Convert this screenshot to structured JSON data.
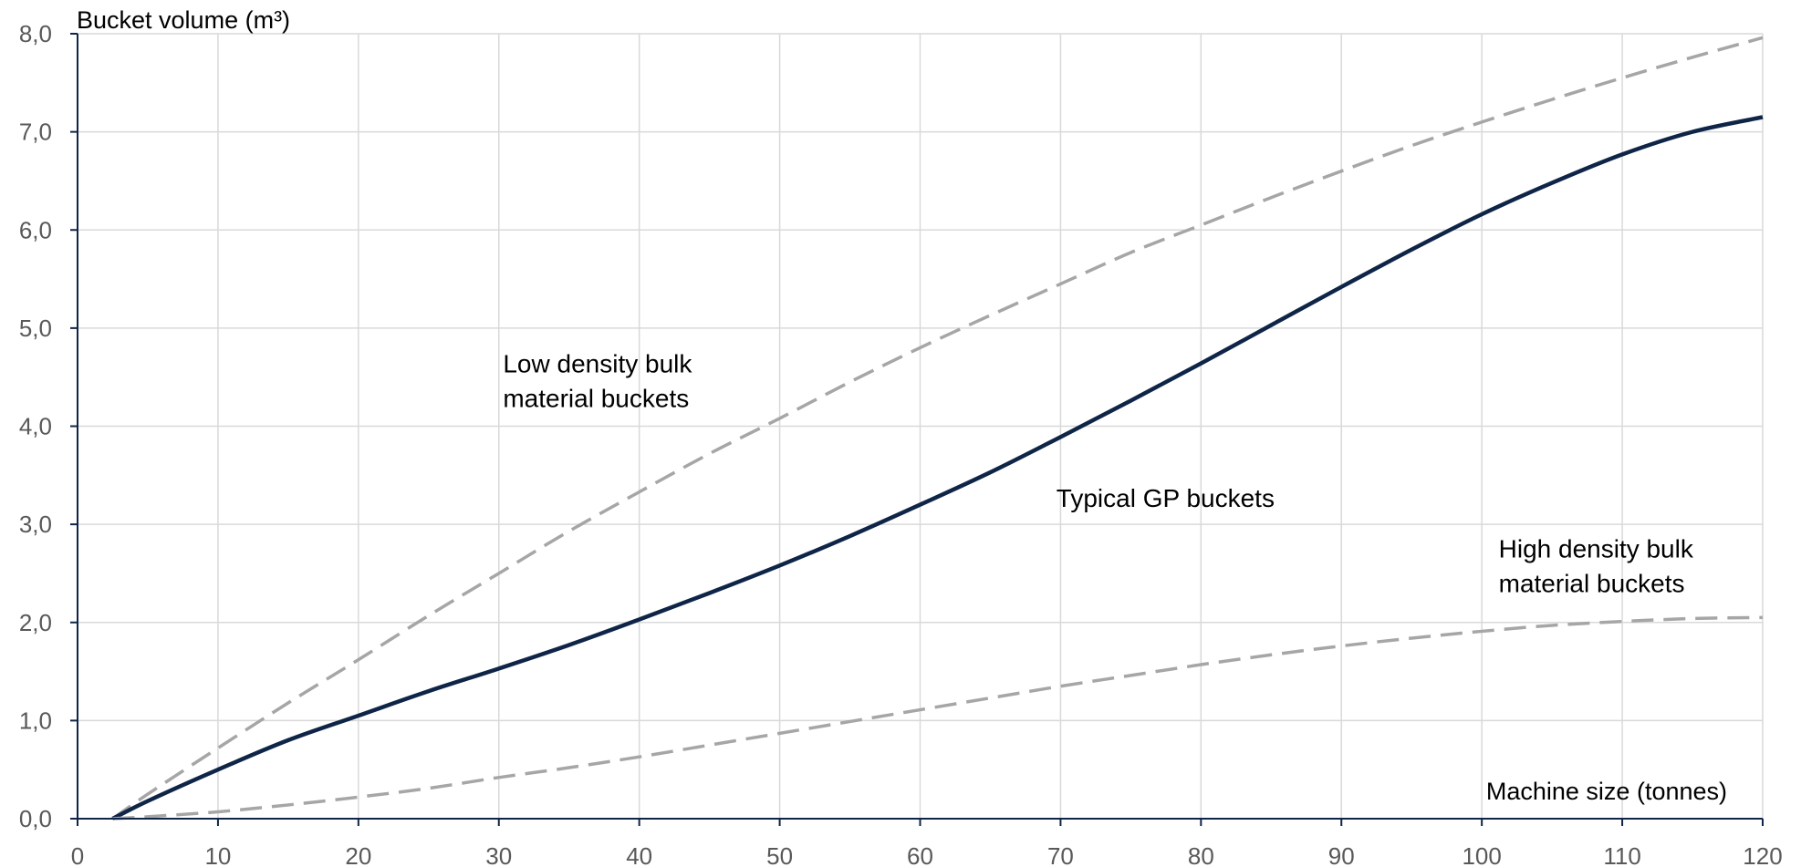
{
  "chart_data": {
    "type": "line",
    "ylabel": "Bucket volume (m³)",
    "xlabel": "Machine size (tonnes)",
    "xlim": [
      0,
      120
    ],
    "ylim": [
      0,
      8
    ],
    "x_ticks": [
      "0",
      "10",
      "20",
      "30",
      "40",
      "50",
      "60",
      "70",
      "80",
      "90",
      "100",
      "110",
      "120"
    ],
    "y_ticks": [
      "0,0",
      "1,0",
      "2,0",
      "3,0",
      "4,0",
      "5,0",
      "6,0",
      "7,0",
      "8,0"
    ],
    "grid": true,
    "series": [
      {
        "style": "dashed",
        "color": "#a6a6a6",
        "x": [
          2.5,
          5,
          10,
          15,
          20,
          25,
          30,
          35,
          40,
          45,
          50,
          55,
          60,
          65,
          70,
          75,
          80,
          85,
          90,
          95,
          100,
          105,
          110,
          115,
          120
        ],
        "y": [
          0,
          0.25,
          0.72,
          1.18,
          1.62,
          2.07,
          2.5,
          2.93,
          3.33,
          3.72,
          4.08,
          4.45,
          4.8,
          5.13,
          5.45,
          5.77,
          6.05,
          6.33,
          6.6,
          6.86,
          7.1,
          7.33,
          7.55,
          7.76,
          7.96
        ]
      },
      {
        "style": "solid",
        "color": "#0f2548",
        "x": [
          2.5,
          5,
          10,
          15,
          20,
          25,
          30,
          35,
          40,
          45,
          50,
          55,
          60,
          65,
          70,
          75,
          80,
          85,
          90,
          95,
          100,
          105,
          110,
          115,
          120
        ],
        "y": [
          0,
          0.18,
          0.5,
          0.8,
          1.05,
          1.3,
          1.53,
          1.77,
          2.03,
          2.3,
          2.58,
          2.88,
          3.2,
          3.53,
          3.89,
          4.26,
          4.64,
          5.03,
          5.42,
          5.8,
          6.16,
          6.48,
          6.77,
          7.0,
          7.15
        ]
      },
      {
        "style": "dashed",
        "color": "#a6a6a6",
        "x": [
          2.5,
          5,
          10,
          15,
          20,
          25,
          30,
          35,
          40,
          45,
          50,
          55,
          60,
          65,
          70,
          75,
          80,
          85,
          90,
          95,
          100,
          105,
          110,
          115,
          120
        ],
        "y": [
          0,
          0.02,
          0.07,
          0.14,
          0.22,
          0.31,
          0.42,
          0.52,
          0.63,
          0.75,
          0.87,
          0.99,
          1.11,
          1.23,
          1.35,
          1.46,
          1.57,
          1.67,
          1.76,
          1.84,
          1.91,
          1.97,
          2.01,
          2.04,
          2.05
        ]
      }
    ],
    "annotations": [
      {
        "lines": [
          "Low density bulk",
          "material buckets"
        ],
        "x": 30.3,
        "y": 4.55
      },
      {
        "lines": [
          "Typical GP buckets"
        ],
        "x": 69.7,
        "y": 3.18
      },
      {
        "lines": [
          "High density bulk",
          "material buckets"
        ],
        "x": 101.2,
        "y": 2.66
      }
    ]
  }
}
